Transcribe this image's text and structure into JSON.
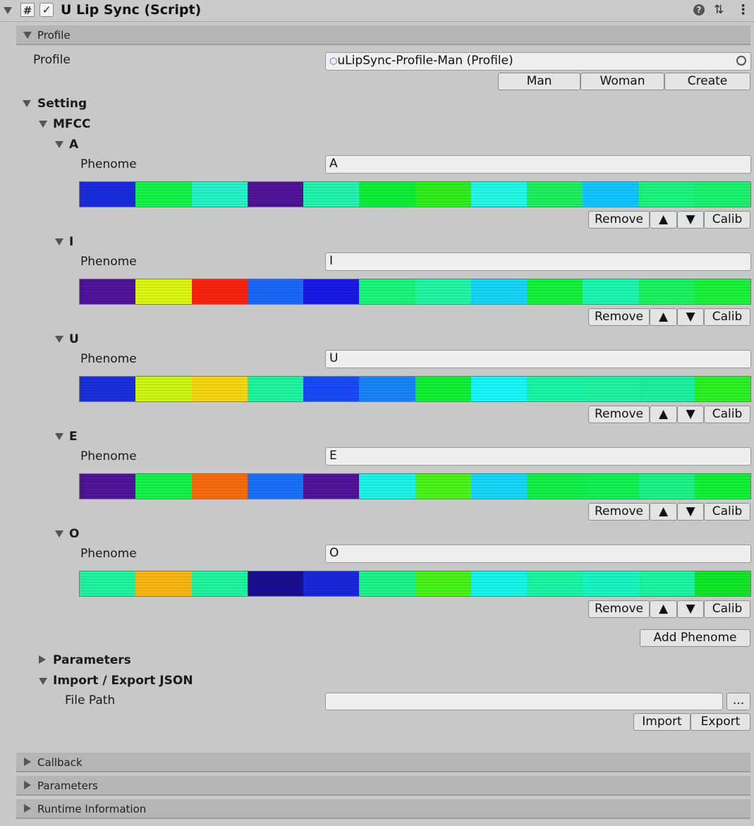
{
  "header": {
    "title": "U Lip Sync (Script)",
    "script_icon_glyph": "#",
    "checkbox_glyph": "✓",
    "help_glyph": "?",
    "presets_glyph": "⇅",
    "menu_glyph": "⋮"
  },
  "profile_section": {
    "title": "Profile",
    "field_label": "Profile",
    "field_value": "uLipSync-Profile-Man (Profile)",
    "buttons": [
      "Man",
      "Woman",
      "Create"
    ]
  },
  "setting": {
    "title": "Setting",
    "mfcc_title": "MFCC",
    "phoneme_label": "Phenome",
    "row_buttons": {
      "remove": "Remove",
      "up": "▲",
      "down": "▼",
      "calib": "Calib"
    },
    "phonemes": [
      {
        "name": "A",
        "value": "A",
        "colors": [
          "#1a2bd8",
          "#19f04a",
          "#2af0c8",
          "#4f1396",
          "#28f2b0",
          "#12ec38",
          "#33ec1f",
          "#27f5e6",
          "#21ec62",
          "#16c4ff",
          "#1ff27f",
          "#20f070"
        ]
      },
      {
        "name": "I",
        "value": "I",
        "colors": [
          "#4f139a",
          "#d8f515",
          "#f5260f",
          "#1a68f5",
          "#1a1ae0",
          "#1ff27c",
          "#23f3a4",
          "#1ad4f5",
          "#18ee3c",
          "#20f3b0",
          "#1ff064",
          "#1ef03e"
        ]
      },
      {
        "name": "U",
        "value": "U",
        "colors": [
          "#1a2fd6",
          "#cdf515",
          "#f5d614",
          "#20f2a0",
          "#1b49f2",
          "#1a84f5",
          "#15ec38",
          "#1af4f4",
          "#20f2a8",
          "#21f2a4",
          "#1ef0a0",
          "#2cef26"
        ]
      },
      {
        "name": "E",
        "value": "E",
        "colors": [
          "#4e1496",
          "#19ef4c",
          "#f56b0f",
          "#1b6ff5",
          "#4f1496",
          "#20f2e6",
          "#4ff01c",
          "#1ad8f5",
          "#15ee4a",
          "#16ee56",
          "#1ff08a",
          "#16ef3a"
        ]
      },
      {
        "name": "O",
        "value": "O",
        "colors": [
          "#21f2a0",
          "#f5b514",
          "#21f2a0",
          "#190f8c",
          "#1a28d8",
          "#1ff087",
          "#4af01c",
          "#1af4e6",
          "#1ff2a2",
          "#1df4c4",
          "#1ff2a0",
          "#14e52a"
        ]
      }
    ],
    "add_phoneme": "Add Phenome"
  },
  "parameters_foldout": "Parameters",
  "import_export": {
    "title": "Import / Export JSON",
    "file_path_label": "File Path",
    "file_path_value": "",
    "browse": "...",
    "import": "Import",
    "export": "Export"
  },
  "footer_sections": [
    "Callback",
    "Parameters",
    "Runtime Information"
  ]
}
